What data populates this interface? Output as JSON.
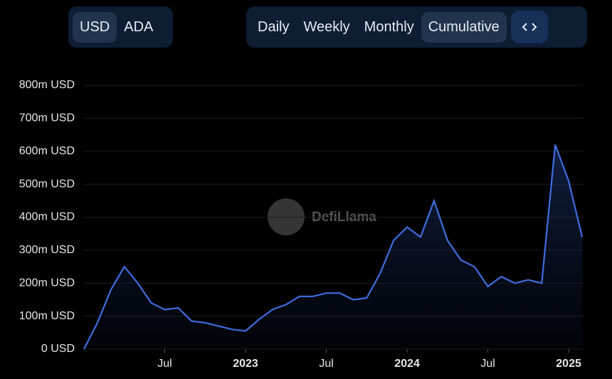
{
  "controls": {
    "currency": [
      "USD",
      "ADA"
    ],
    "period": [
      "Daily",
      "Weekly",
      "Monthly",
      "Cumulative"
    ]
  },
  "watermark": "DefiLlama",
  "chart_data": {
    "type": "area",
    "color": "#3e6de0",
    "x": [
      "2022-01",
      "2022-02",
      "2022-03",
      "2022-04",
      "2022-05",
      "2022-06",
      "2022-07",
      "2022-08",
      "2022-09",
      "2022-10",
      "2022-11",
      "2022-12",
      "2023-01",
      "2023-02",
      "2023-03",
      "2023-04",
      "2023-05",
      "2023-06",
      "2023-07",
      "2023-08",
      "2023-09",
      "2023-10",
      "2023-11",
      "2023-12",
      "2024-01",
      "2024-02",
      "2024-03",
      "2024-04",
      "2024-05",
      "2024-06",
      "2024-07",
      "2024-08",
      "2024-09",
      "2024-10",
      "2024-11",
      "2024-12",
      "2025-01",
      "2025-02"
    ],
    "values": [
      0,
      80,
      180,
      250,
      200,
      140,
      120,
      125,
      85,
      80,
      70,
      60,
      55,
      90,
      120,
      135,
      160,
      160,
      170,
      170,
      150,
      155,
      230,
      330,
      370,
      340,
      450,
      330,
      270,
      250,
      190,
      220,
      200,
      210,
      200,
      620,
      510,
      340
    ],
    "xlim": [
      "2022-01",
      "2025-02"
    ],
    "xticks": [
      {
        "value": "2022-07",
        "label": "Jul"
      },
      {
        "value": "2023-01",
        "label": "2023"
      },
      {
        "value": "2023-07",
        "label": "Jul"
      },
      {
        "value": "2024-01",
        "label": "2024"
      },
      {
        "value": "2024-07",
        "label": "Jul"
      },
      {
        "value": "2025-01",
        "label": "2025"
      }
    ],
    "ylim": [
      0,
      800
    ],
    "yticks": [
      {
        "value": 0,
        "label": "0 USD"
      },
      {
        "value": 100,
        "label": "100m USD"
      },
      {
        "value": 200,
        "label": "200m USD"
      },
      {
        "value": 300,
        "label": "300m USD"
      },
      {
        "value": 400,
        "label": "400m USD"
      },
      {
        "value": 500,
        "label": "500m USD"
      },
      {
        "value": 600,
        "label": "600m USD"
      },
      {
        "value": 700,
        "label": "700m USD"
      },
      {
        "value": 800,
        "label": "800m USD"
      }
    ],
    "grid": true
  }
}
